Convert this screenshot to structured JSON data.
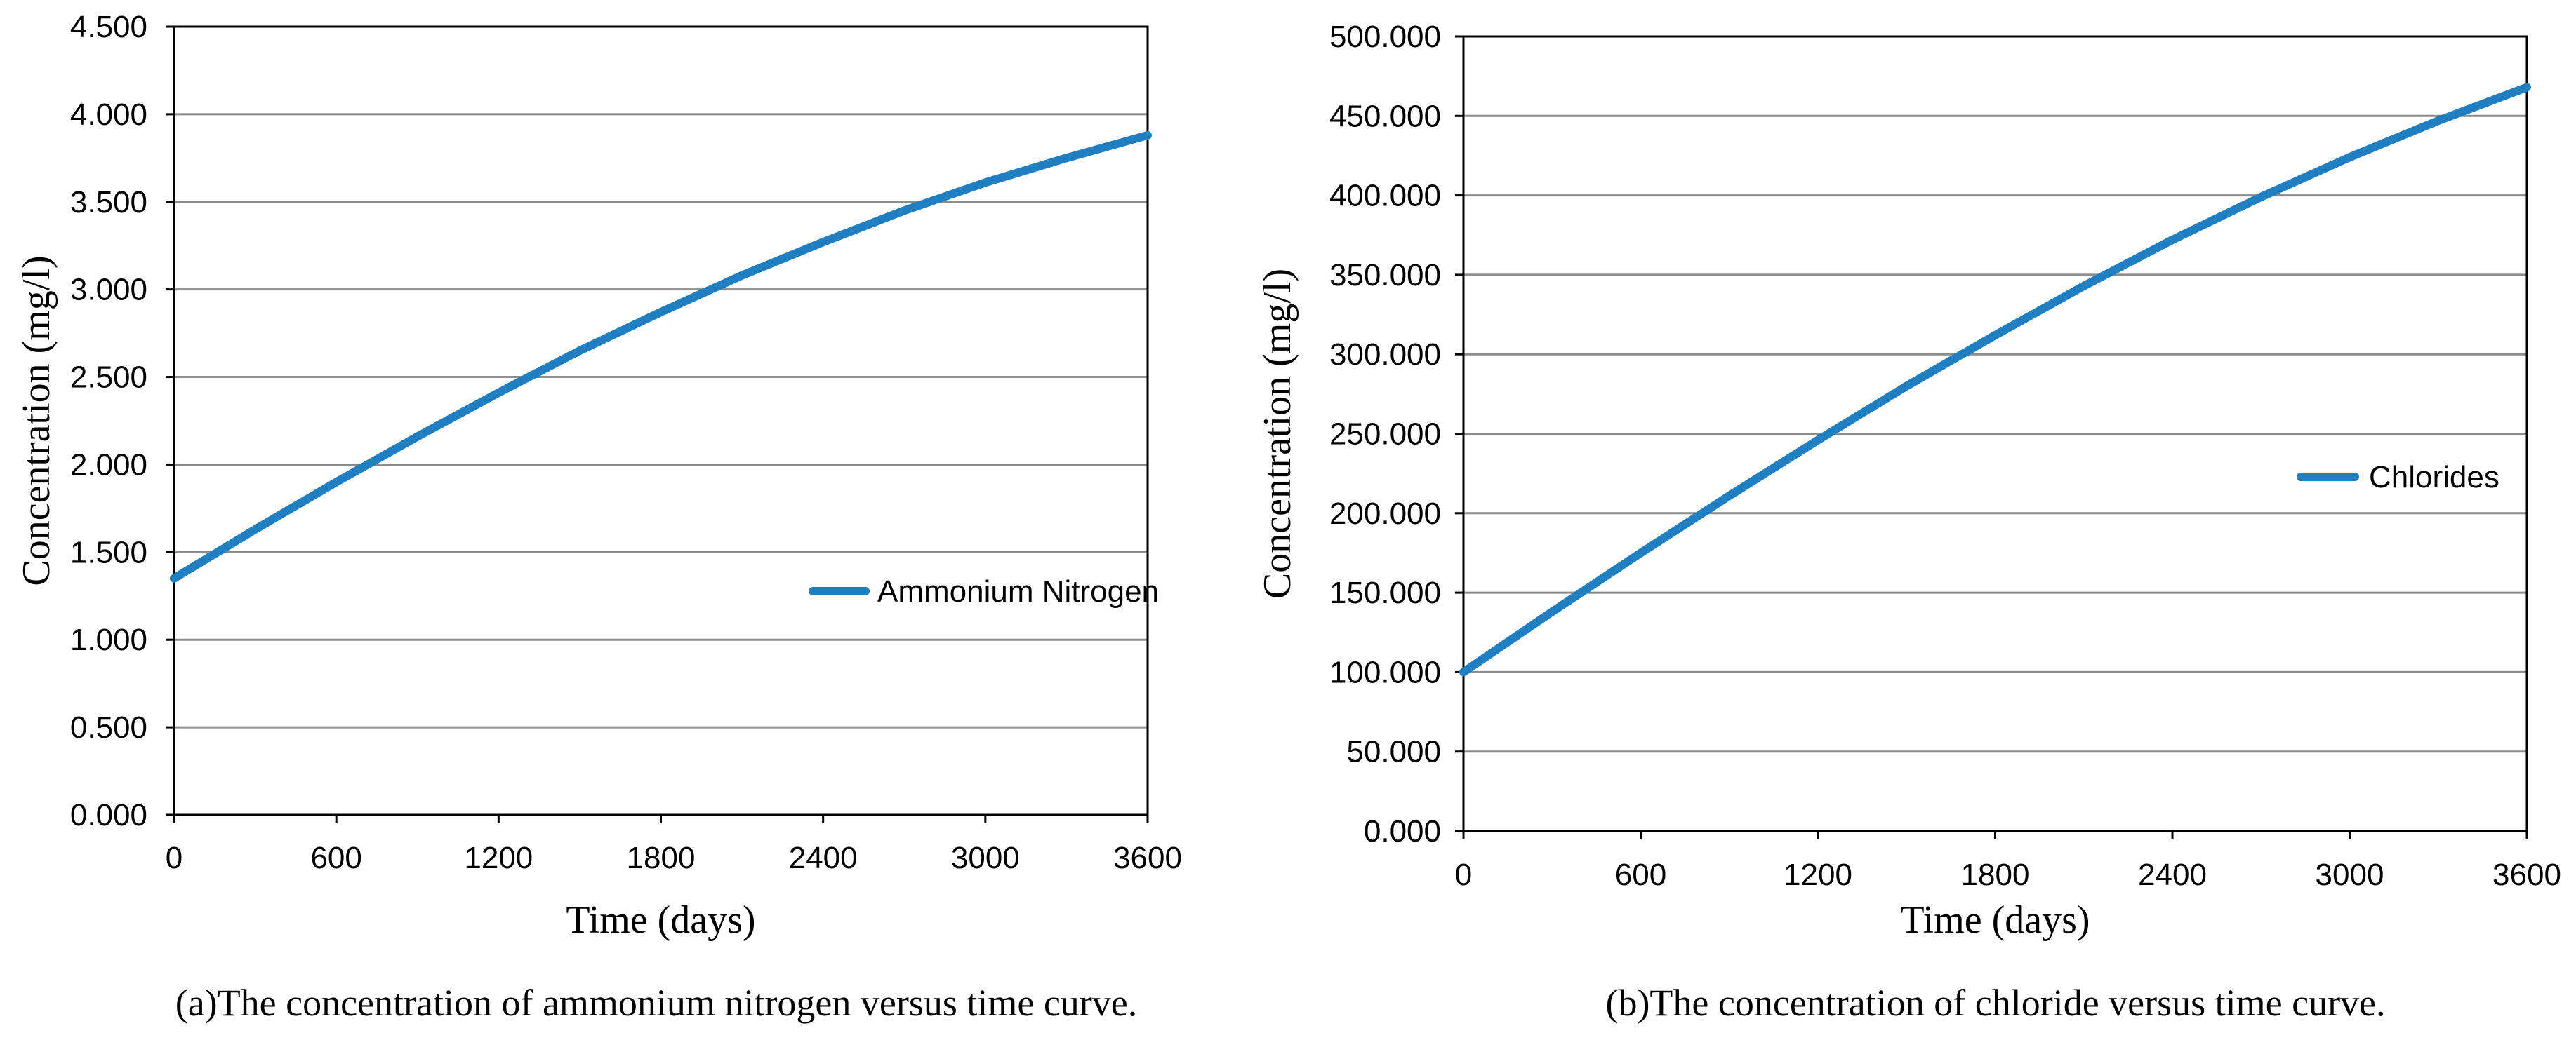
{
  "colors": {
    "series": "#1f7fc1"
  },
  "chart_data": [
    {
      "type": "line",
      "caption": "(a)The concentration of ammonium nitrogen versus time curve.",
      "xlabel": "Time (days)",
      "ylabel": "Concentration (mg/l)",
      "xlim": [
        0,
        3600
      ],
      "ylim": [
        0,
        4.5
      ],
      "xticks": [
        "0",
        "600",
        "1200",
        "1800",
        "2400",
        "3000",
        "3600"
      ],
      "yticks": [
        "0.000",
        "0.500",
        "1.000",
        "1.500",
        "2.000",
        "2.500",
        "3.000",
        "3.500",
        "4.000",
        "4.500"
      ],
      "legend_position": "lower-right",
      "series": [
        {
          "name": "Ammonium Nitrogen",
          "x": [
            0,
            300,
            600,
            900,
            1200,
            1500,
            1800,
            2100,
            2400,
            2700,
            3000,
            3300,
            3600
          ],
          "y": [
            1.35,
            1.63,
            1.9,
            2.16,
            2.41,
            2.65,
            2.87,
            3.08,
            3.27,
            3.45,
            3.61,
            3.75,
            3.88
          ]
        }
      ]
    },
    {
      "type": "line",
      "caption": "(b)The concentration of chloride versus time curve.",
      "xlabel": "Time (days)",
      "ylabel": "Concentration (mg/l)",
      "xlim": [
        0,
        3600
      ],
      "ylim": [
        0,
        500
      ],
      "xticks": [
        "0",
        "600",
        "1200",
        "1800",
        "2400",
        "3000",
        "3600"
      ],
      "yticks": [
        "0.000",
        "50.000",
        "100.000",
        "150.000",
        "200.000",
        "250.000",
        "300.000",
        "350.000",
        "400.000",
        "450.000",
        "500.000"
      ],
      "legend_position": "right",
      "series": [
        {
          "name": "Chlorides",
          "x": [
            0,
            300,
            600,
            900,
            1200,
            1500,
            1800,
            2100,
            2400,
            2700,
            3000,
            3300,
            3600
          ],
          "y": [
            100,
            138,
            175,
            211,
            246,
            280,
            312,
            343,
            372,
            399,
            424,
            447,
            468
          ]
        }
      ]
    }
  ]
}
